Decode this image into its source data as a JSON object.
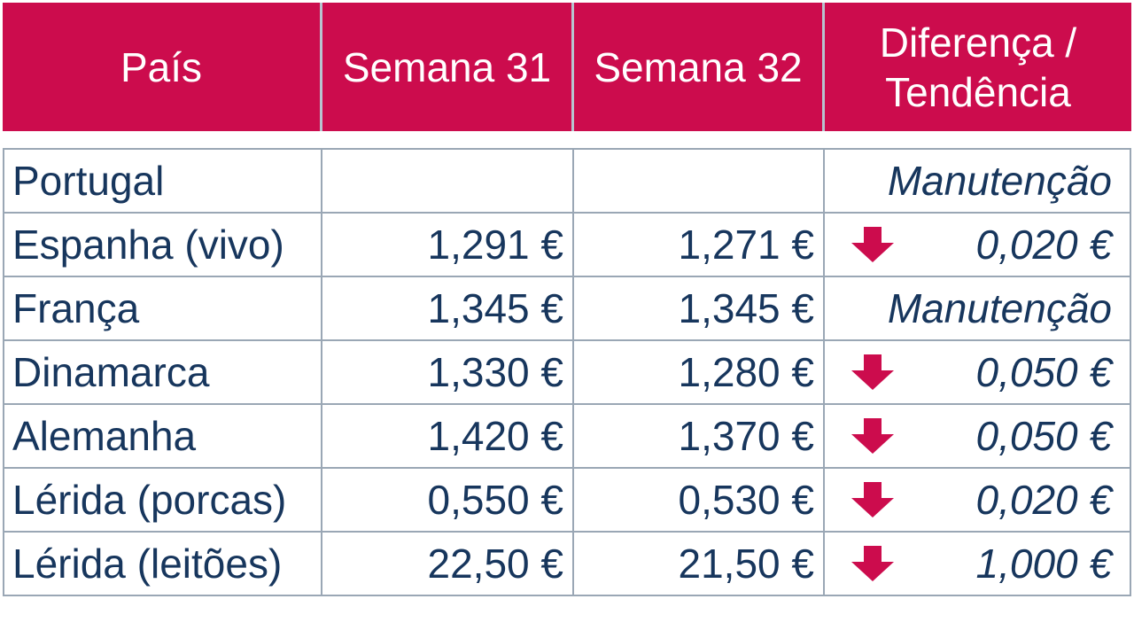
{
  "colors": {
    "header_bg": "#cc0c4d",
    "header_text": "#ffffff",
    "body_text": "#17365d",
    "arrow": "#cc0c4d"
  },
  "header": {
    "country": "País",
    "week31": "Semana 31",
    "week32": "Semana 32",
    "diff_line1": "Diferença /",
    "diff_line2": "Tendência"
  },
  "rows": [
    {
      "country": "Portugal",
      "w31": "",
      "w32": "",
      "trend": "none",
      "diff": "Manutenção"
    },
    {
      "country": "Espanha (vivo)",
      "w31": "1,291 €",
      "w32": "1,271 €",
      "trend": "down-arrow-icon",
      "diff": "0,020 €"
    },
    {
      "country": "França",
      "w31": "1,345 €",
      "w32": "1,345 €",
      "trend": "none",
      "diff": "Manutenção"
    },
    {
      "country": "Dinamarca",
      "w31": "1,330 €",
      "w32": "1,280 €",
      "trend": "down-arrow-icon",
      "diff": "0,050 €"
    },
    {
      "country": "Alemanha",
      "w31": "1,420 €",
      "w32": "1,370 €",
      "trend": "down-arrow-icon",
      "diff": "0,050 €"
    },
    {
      "country": "Lérida (porcas)",
      "w31": "0,550 €",
      "w32": "0,530 €",
      "trend": "down-arrow-icon",
      "diff": "0,020 €"
    },
    {
      "country": "Lérida (leitões)",
      "w31": "22,50 €",
      "w32": "21,50 €",
      "trend": "down-arrow-icon",
      "diff": "1,000 €"
    }
  ]
}
